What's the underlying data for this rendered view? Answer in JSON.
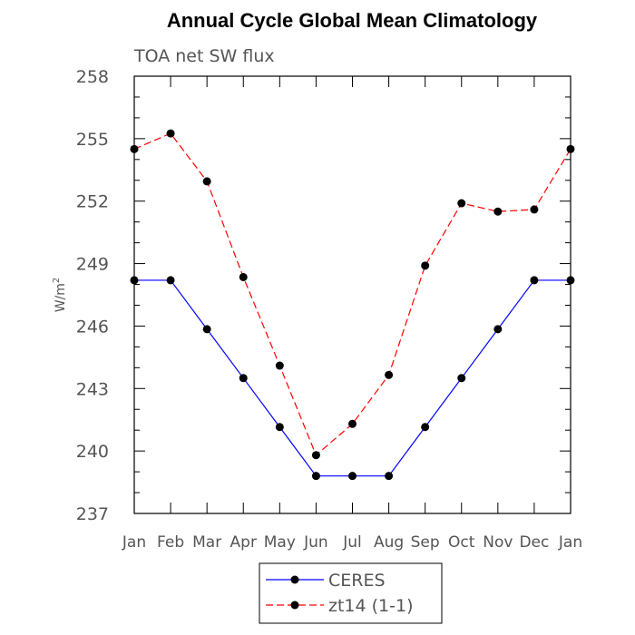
{
  "chart_data": {
    "type": "line",
    "title": "Annual Cycle Global Mean Climatology",
    "subtitle": "TOA net SW flux",
    "ylabel_base": "W/m",
    "ylabel_sup": "2",
    "categories": [
      "Jan",
      "Feb",
      "Mar",
      "Apr",
      "May",
      "Jun",
      "Jul",
      "Aug",
      "Sep",
      "Oct",
      "Nov",
      "Dec",
      "Jan"
    ],
    "ylim": [
      237,
      258
    ],
    "yticks": [
      237,
      240,
      243,
      246,
      249,
      252,
      255,
      258
    ],
    "series": [
      {
        "name": "CERES",
        "color": "#0000ff",
        "style": "solid",
        "values": [
          248.2,
          248.2,
          245.85,
          243.5,
          241.15,
          238.8,
          238.8,
          238.8,
          241.15,
          243.5,
          245.85,
          248.2,
          248.2
        ]
      },
      {
        "name": "zt14 (1-1)",
        "color": "#ff0000",
        "style": "dashed",
        "values": [
          254.5,
          255.25,
          252.95,
          248.35,
          244.1,
          239.8,
          241.3,
          243.65,
          248.9,
          251.9,
          251.5,
          251.6,
          254.5
        ]
      }
    ],
    "legend_position": "bottom-center",
    "grid": false
  }
}
